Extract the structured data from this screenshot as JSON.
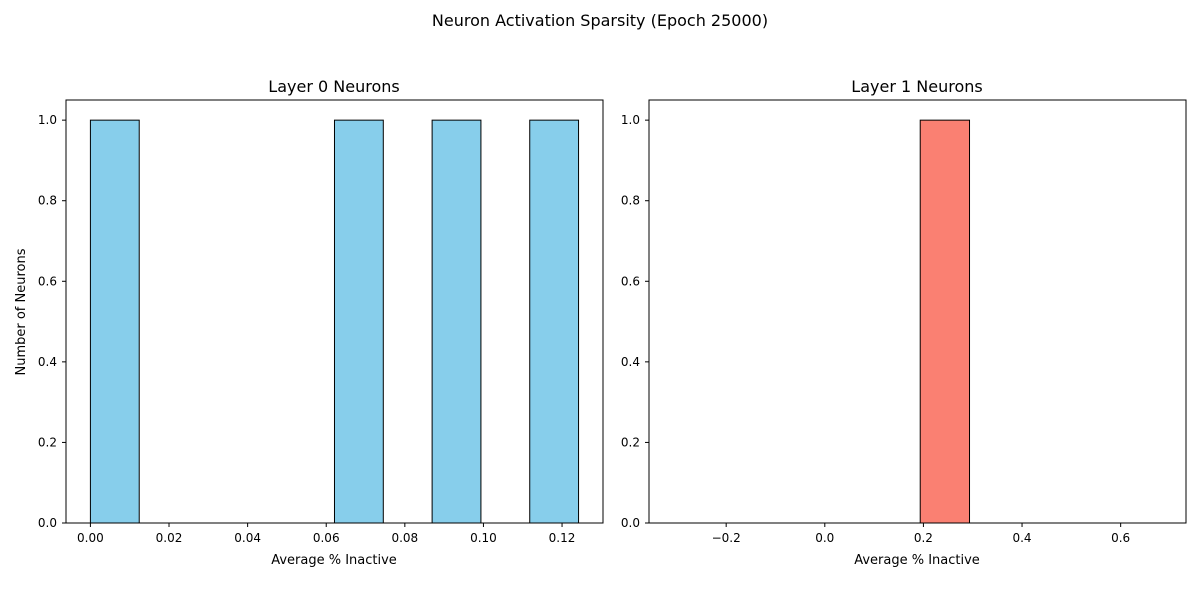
{
  "figure": {
    "title": "Neuron Activation Sparsity (Epoch 25000)"
  },
  "chart_data": [
    {
      "type": "bar",
      "title": "Layer 0 Neurons",
      "xlabel": "Average % Inactive",
      "ylabel": "Number of Neurons",
      "xlim": [
        -0.00621,
        0.13042
      ],
      "ylim": [
        0,
        1.05
      ],
      "xticks": [
        "0.00",
        "0.02",
        "0.04",
        "0.06",
        "0.08",
        "0.10",
        "0.12"
      ],
      "yticks": [
        "0.0",
        "0.2",
        "0.4",
        "0.6",
        "0.8",
        "1.0"
      ],
      "bins": [
        {
          "start": 0.0,
          "end": 0.01242,
          "count": 1
        },
        {
          "start": 0.01242,
          "end": 0.02484,
          "count": 0
        },
        {
          "start": 0.02484,
          "end": 0.03726,
          "count": 0
        },
        {
          "start": 0.03726,
          "end": 0.04968,
          "count": 0
        },
        {
          "start": 0.04968,
          "end": 0.0621,
          "count": 0
        },
        {
          "start": 0.0621,
          "end": 0.07452,
          "count": 1
        },
        {
          "start": 0.07452,
          "end": 0.08694,
          "count": 0
        },
        {
          "start": 0.08694,
          "end": 0.09936,
          "count": 1
        },
        {
          "start": 0.09936,
          "end": 0.11178,
          "count": 0
        },
        {
          "start": 0.11178,
          "end": 0.1242,
          "count": 1
        }
      ],
      "color": "#87CEEB",
      "edgecolor": "#000000",
      "grid": false
    },
    {
      "type": "bar",
      "title": "Layer 1 Neurons",
      "xlabel": "Average % Inactive",
      "ylabel": "",
      "xlim": [
        -0.3565,
        0.7325
      ],
      "ylim": [
        0,
        1.05
      ],
      "xticks": [
        "−0.2",
        "0.0",
        "0.2",
        "0.4",
        "0.6"
      ],
      "yticks": [
        "0.0",
        "0.2",
        "0.4",
        "0.6",
        "0.8",
        "1.0"
      ],
      "bins": [
        {
          "start": -0.3065,
          "end": -0.2065,
          "count": 0
        },
        {
          "start": -0.2065,
          "end": -0.1065,
          "count": 0
        },
        {
          "start": -0.1065,
          "end": -0.0065,
          "count": 0
        },
        {
          "start": -0.0065,
          "end": 0.0935,
          "count": 0
        },
        {
          "start": 0.0935,
          "end": 0.1935,
          "count": 0
        },
        {
          "start": 0.1935,
          "end": 0.2935,
          "count": 1
        },
        {
          "start": 0.2935,
          "end": 0.3935,
          "count": 0
        },
        {
          "start": 0.3935,
          "end": 0.4935,
          "count": 0
        },
        {
          "start": 0.4935,
          "end": 0.5935,
          "count": 0
        },
        {
          "start": 0.5935,
          "end": 0.6935,
          "count": 0
        }
      ],
      "color": "#FA8072",
      "edgecolor": "#000000",
      "grid": false
    }
  ]
}
